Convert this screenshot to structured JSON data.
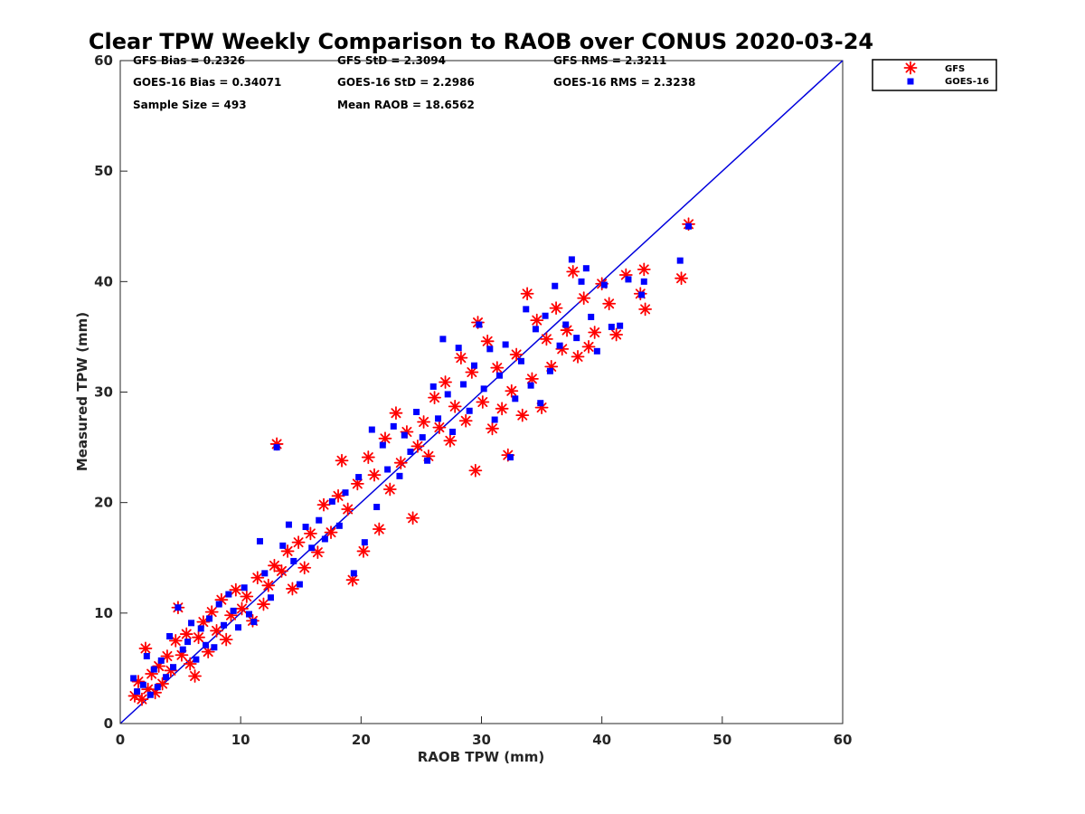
{
  "chart_data": {
    "type": "scatter",
    "title": "Clear TPW Weekly Comparison to RAOB over CONUS 2020-03-24",
    "xlabel": "RAOB TPW (mm)",
    "ylabel": "Measured TPW (mm)",
    "xlim": [
      0,
      60
    ],
    "ylim": [
      0,
      60
    ],
    "xticks": [
      "0",
      "10",
      "20",
      "30",
      "40",
      "50",
      "60"
    ],
    "yticks": [
      "0",
      "10",
      "20",
      "30",
      "40",
      "50",
      "60"
    ],
    "grid": false,
    "legend_position": "top-right",
    "reference_line": {
      "x": [
        0,
        60
      ],
      "y": [
        0,
        60
      ],
      "color": "#0000dd"
    },
    "stats": {
      "gfs_bias": "GFS Bias = 0.2326",
      "goes_bias": "GOES-16 Bias = 0.34071",
      "sample_size": "Sample Size = 493",
      "gfs_std": "GFS StD = 2.3094",
      "goes_std": "GOES-16 StD = 2.2986",
      "mean_raob": "Mean RAOB = 18.6562",
      "gfs_rms": "GFS RMS = 2.3211",
      "goes_rms": "GOES-16 RMS = 2.3238"
    },
    "series": [
      {
        "name": "GFS",
        "marker": "asterisk",
        "color": "#ff0000",
        "points": [
          [
            1.2,
            2.5
          ],
          [
            1.5,
            3.8
          ],
          [
            1.8,
            2.2
          ],
          [
            2.1,
            6.8
          ],
          [
            2.3,
            3.1
          ],
          [
            2.6,
            4.5
          ],
          [
            2.9,
            2.8
          ],
          [
            3.2,
            5.2
          ],
          [
            3.5,
            3.6
          ],
          [
            3.9,
            6.1
          ],
          [
            4.2,
            4.8
          ],
          [
            4.6,
            7.5
          ],
          [
            4.8,
            10.5
          ],
          [
            5.1,
            6.2
          ],
          [
            5.5,
            8.1
          ],
          [
            5.8,
            5.4
          ],
          [
            6.2,
            4.3
          ],
          [
            6.5,
            7.8
          ],
          [
            6.9,
            9.2
          ],
          [
            7.3,
            6.5
          ],
          [
            7.6,
            10.1
          ],
          [
            8.0,
            8.4
          ],
          [
            8.4,
            11.2
          ],
          [
            8.8,
            7.6
          ],
          [
            9.2,
            9.8
          ],
          [
            9.6,
            12.1
          ],
          [
            10.1,
            10.4
          ],
          [
            10.5,
            11.5
          ],
          [
            11.0,
            9.3
          ],
          [
            11.4,
            13.2
          ],
          [
            11.9,
            10.8
          ],
          [
            12.3,
            12.5
          ],
          [
            12.8,
            14.3
          ],
          [
            13.0,
            25.3
          ],
          [
            13.4,
            13.8
          ],
          [
            13.9,
            15.6
          ],
          [
            14.3,
            12.2
          ],
          [
            14.8,
            16.4
          ],
          [
            15.3,
            14.1
          ],
          [
            15.8,
            17.2
          ],
          [
            16.4,
            15.5
          ],
          [
            16.9,
            19.8
          ],
          [
            17.5,
            17.3
          ],
          [
            18.1,
            20.6
          ],
          [
            18.4,
            23.8
          ],
          [
            18.9,
            19.4
          ],
          [
            19.3,
            13.0
          ],
          [
            19.7,
            21.7
          ],
          [
            20.2,
            15.6
          ],
          [
            20.6,
            24.1
          ],
          [
            21.1,
            22.5
          ],
          [
            21.5,
            17.6
          ],
          [
            22.0,
            25.8
          ],
          [
            22.4,
            21.2
          ],
          [
            22.9,
            28.1
          ],
          [
            23.3,
            23.6
          ],
          [
            23.8,
            26.4
          ],
          [
            24.3,
            18.6
          ],
          [
            24.7,
            25.1
          ],
          [
            25.2,
            27.3
          ],
          [
            25.6,
            24.2
          ],
          [
            26.1,
            29.5
          ],
          [
            26.5,
            26.8
          ],
          [
            27.0,
            30.9
          ],
          [
            27.4,
            25.6
          ],
          [
            27.8,
            28.7
          ],
          [
            28.3,
            33.1
          ],
          [
            28.7,
            27.4
          ],
          [
            29.2,
            31.8
          ],
          [
            29.5,
            22.9
          ],
          [
            29.7,
            36.3
          ],
          [
            30.1,
            29.1
          ],
          [
            30.5,
            34.6
          ],
          [
            30.9,
            26.7
          ],
          [
            31.3,
            32.2
          ],
          [
            31.7,
            28.5
          ],
          [
            32.2,
            24.3
          ],
          [
            32.5,
            30.1
          ],
          [
            32.9,
            33.4
          ],
          [
            33.4,
            27.9
          ],
          [
            33.8,
            38.9
          ],
          [
            34.2,
            31.2
          ],
          [
            34.6,
            36.5
          ],
          [
            35.0,
            28.6
          ],
          [
            35.4,
            34.8
          ],
          [
            35.8,
            32.3
          ],
          [
            36.2,
            37.6
          ],
          [
            36.7,
            33.9
          ],
          [
            37.1,
            35.6
          ],
          [
            37.6,
            40.9
          ],
          [
            38.0,
            33.2
          ],
          [
            38.5,
            38.5
          ],
          [
            38.9,
            34.1
          ],
          [
            39.4,
            35.4
          ],
          [
            40.0,
            39.8
          ],
          [
            40.6,
            38.0
          ],
          [
            41.2,
            35.2
          ],
          [
            42.0,
            40.6
          ],
          [
            43.2,
            38.9
          ],
          [
            43.5,
            41.1
          ],
          [
            43.6,
            37.5
          ],
          [
            46.6,
            40.3
          ],
          [
            47.2,
            45.2
          ]
        ]
      },
      {
        "name": "GOES-16",
        "marker": "square",
        "color": "#0000ff",
        "points": [
          [
            1.1,
            4.1
          ],
          [
            1.4,
            2.9
          ],
          [
            1.9,
            3.5
          ],
          [
            2.2,
            6.1
          ],
          [
            2.5,
            2.6
          ],
          [
            2.8,
            4.9
          ],
          [
            3.1,
            3.3
          ],
          [
            3.4,
            5.7
          ],
          [
            3.8,
            4.2
          ],
          [
            4.1,
            7.9
          ],
          [
            4.4,
            5.1
          ],
          [
            4.8,
            10.5
          ],
          [
            5.2,
            6.7
          ],
          [
            5.6,
            7.4
          ],
          [
            5.9,
            9.1
          ],
          [
            6.3,
            5.8
          ],
          [
            6.7,
            8.6
          ],
          [
            7.1,
            7.1
          ],
          [
            7.4,
            9.5
          ],
          [
            7.8,
            6.9
          ],
          [
            8.2,
            10.8
          ],
          [
            8.6,
            8.9
          ],
          [
            9.0,
            11.7
          ],
          [
            9.4,
            10.2
          ],
          [
            9.8,
            8.7
          ],
          [
            10.3,
            12.3
          ],
          [
            10.7,
            9.9
          ],
          [
            11.1,
            9.2
          ],
          [
            11.6,
            16.5
          ],
          [
            12.0,
            13.6
          ],
          [
            12.5,
            11.4
          ],
          [
            13.0,
            25.0
          ],
          [
            13.5,
            16.1
          ],
          [
            14.0,
            18.0
          ],
          [
            14.4,
            14.7
          ],
          [
            14.9,
            12.6
          ],
          [
            15.4,
            17.8
          ],
          [
            15.9,
            15.9
          ],
          [
            16.5,
            18.4
          ],
          [
            17.0,
            16.7
          ],
          [
            17.6,
            20.1
          ],
          [
            18.2,
            17.9
          ],
          [
            18.7,
            20.9
          ],
          [
            19.4,
            13.6
          ],
          [
            19.8,
            22.3
          ],
          [
            20.3,
            16.4
          ],
          [
            20.9,
            26.6
          ],
          [
            21.3,
            19.6
          ],
          [
            21.8,
            25.2
          ],
          [
            22.2,
            23.0
          ],
          [
            22.7,
            26.9
          ],
          [
            23.2,
            22.4
          ],
          [
            23.6,
            26.1
          ],
          [
            24.1,
            24.6
          ],
          [
            24.6,
            28.2
          ],
          [
            25.1,
            25.9
          ],
          [
            25.5,
            23.8
          ],
          [
            26.0,
            30.5
          ],
          [
            26.4,
            27.6
          ],
          [
            26.8,
            34.8
          ],
          [
            27.2,
            29.8
          ],
          [
            27.6,
            26.4
          ],
          [
            28.1,
            34.0
          ],
          [
            28.5,
            30.7
          ],
          [
            29.0,
            28.3
          ],
          [
            29.4,
            32.4
          ],
          [
            29.8,
            36.1
          ],
          [
            30.2,
            30.3
          ],
          [
            30.7,
            33.9
          ],
          [
            31.1,
            27.5
          ],
          [
            31.5,
            31.5
          ],
          [
            32.0,
            34.3
          ],
          [
            32.4,
            24.1
          ],
          [
            32.8,
            29.4
          ],
          [
            33.3,
            32.8
          ],
          [
            33.7,
            37.5
          ],
          [
            34.1,
            30.6
          ],
          [
            34.5,
            35.7
          ],
          [
            34.9,
            29.0
          ],
          [
            35.3,
            36.9
          ],
          [
            35.7,
            31.9
          ],
          [
            36.1,
            39.6
          ],
          [
            36.5,
            34.2
          ],
          [
            37.0,
            36.1
          ],
          [
            37.5,
            42.0
          ],
          [
            37.9,
            34.9
          ],
          [
            38.3,
            40.0
          ],
          [
            38.7,
            41.2
          ],
          [
            39.1,
            36.8
          ],
          [
            39.6,
            33.7
          ],
          [
            40.2,
            39.7
          ],
          [
            40.8,
            35.9
          ],
          [
            41.5,
            36.0
          ],
          [
            42.2,
            40.2
          ],
          [
            43.3,
            38.8
          ],
          [
            43.5,
            40.0
          ],
          [
            46.5,
            41.9
          ],
          [
            47.2,
            45.0
          ]
        ]
      }
    ]
  }
}
